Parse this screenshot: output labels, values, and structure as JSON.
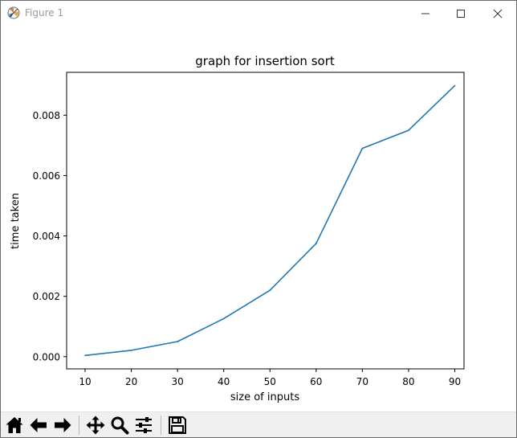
{
  "window": {
    "title": "Figure 1",
    "icons": {
      "app": "matplotlib-icon",
      "minimize": "minimize-icon",
      "maximize": "maximize-icon",
      "close": "close-icon"
    }
  },
  "toolbar": {
    "buttons": [
      {
        "name": "home",
        "icon": "home-icon"
      },
      {
        "name": "back",
        "icon": "arrow-left-icon"
      },
      {
        "name": "forward",
        "icon": "arrow-right-icon"
      },
      {
        "name": "pan",
        "icon": "move-icon"
      },
      {
        "name": "zoom",
        "icon": "magnifier-icon"
      },
      {
        "name": "configure-subplots",
        "icon": "sliders-icon"
      },
      {
        "name": "save",
        "icon": "floppy-disk-icon"
      }
    ]
  },
  "chart_data": {
    "type": "line",
    "title": "graph for insertion sort",
    "xlabel": "size of inputs",
    "ylabel": "time taken",
    "x": [
      10,
      20,
      30,
      40,
      50,
      60,
      70,
      80,
      90
    ],
    "series": [
      {
        "values": [
          4e-05,
          0.00021,
          0.0005,
          0.00126,
          0.0022,
          0.00375,
          0.0069,
          0.0075,
          0.00898
        ]
      }
    ],
    "xticks": [
      10,
      20,
      30,
      40,
      50,
      60,
      70,
      80,
      90
    ],
    "xtick_labels": [
      "10",
      "20",
      "30",
      "40",
      "50",
      "60",
      "70",
      "80",
      "90"
    ],
    "yticks": [
      0,
      0.002,
      0.004,
      0.006,
      0.008
    ],
    "ytick_labels": [
      "0.000",
      "0.002",
      "0.004",
      "0.006",
      "0.008"
    ],
    "xlim": [
      6,
      92
    ],
    "ylim": [
      -0.000405,
      0.00942
    ],
    "grid": false,
    "line_color": "#1f77b4"
  }
}
